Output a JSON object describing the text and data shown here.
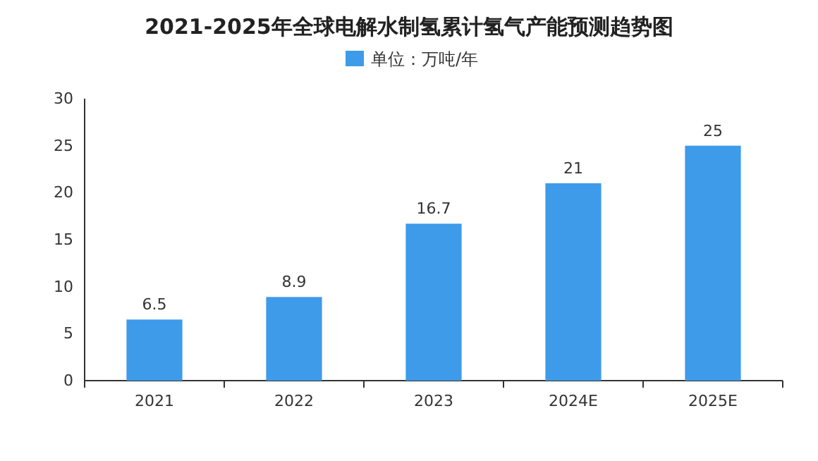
{
  "chart_data": {
    "type": "bar",
    "title": "2021-2025年全球电解水制氢累计氢气产能预测趋势图",
    "categories": [
      "2021",
      "2022",
      "2023",
      "2024E",
      "2025E"
    ],
    "series": [
      {
        "name": "单位：万吨/年",
        "color": "#3d9be9",
        "values": [
          6.5,
          8.9,
          16.7,
          21,
          25
        ]
      }
    ],
    "ylim": [
      0,
      30
    ],
    "yticks": [
      0,
      5,
      10,
      15,
      20,
      25,
      30
    ],
    "data_labels": true,
    "legend": "top"
  }
}
